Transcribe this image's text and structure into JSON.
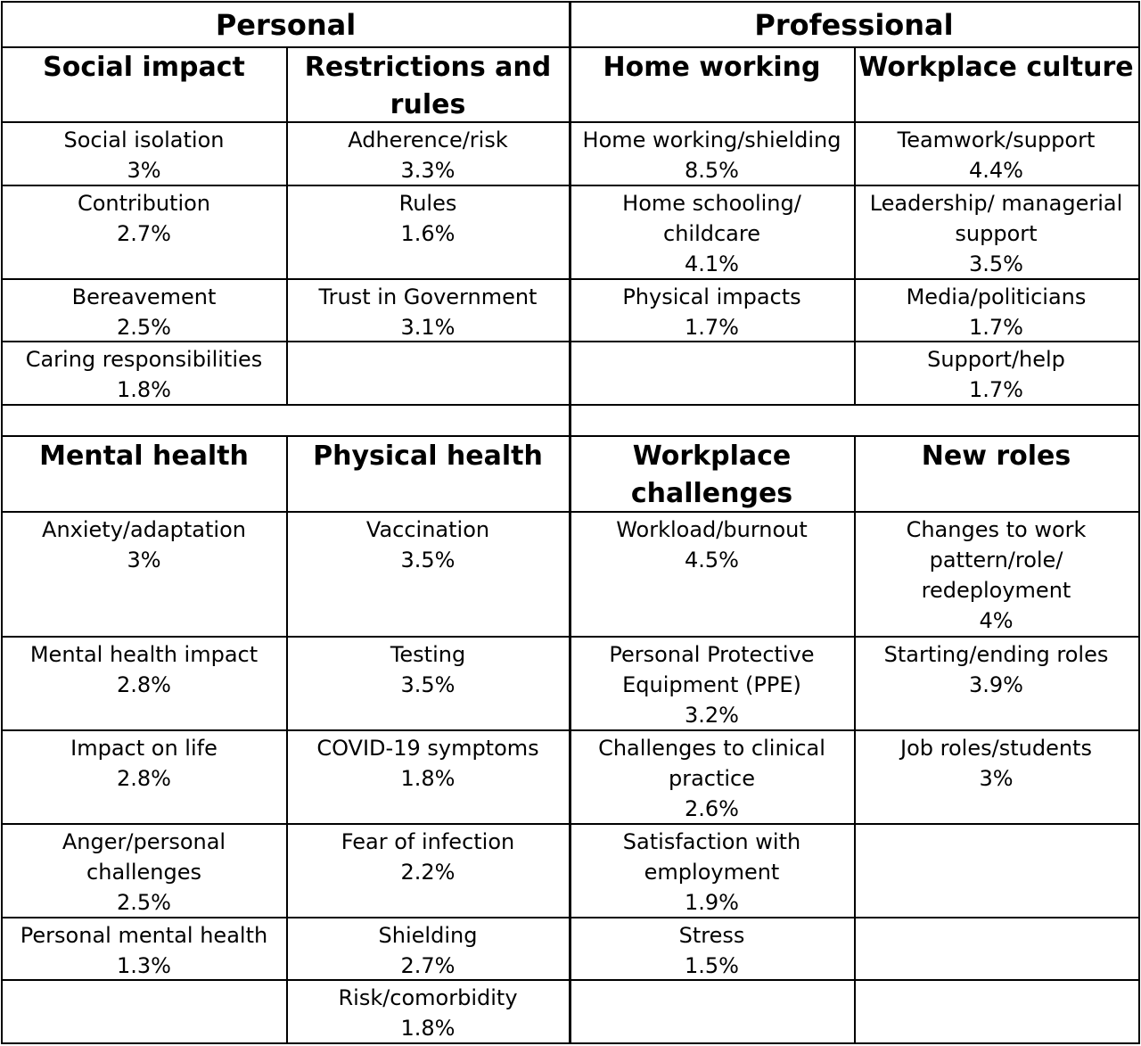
{
  "table": {
    "sections": [
      "Personal",
      "Professional"
    ],
    "upper": {
      "headers": [
        [
          "Social impact"
        ],
        [
          "Restrictions and",
          "rules"
        ],
        [
          "Home working"
        ],
        [
          "Workplace culture"
        ]
      ],
      "rows": [
        [
          [
            "Social isolation",
            "3%"
          ],
          [
            "Adherence/risk",
            "3.3%"
          ],
          [
            "Home working/shielding",
            "8.5%"
          ],
          [
            "Teamwork/support",
            "4.4%"
          ]
        ],
        [
          [
            "Contribution",
            "2.7%"
          ],
          [
            "Rules",
            "1.6%"
          ],
          [
            "Home schooling/",
            "childcare",
            "4.1%"
          ],
          [
            "Leadership/ managerial",
            "support",
            "3.5%"
          ]
        ],
        [
          [
            "Bereavement",
            "2.5%"
          ],
          [
            "Trust in Government",
            "3.1%"
          ],
          [
            "Physical impacts",
            "1.7%"
          ],
          [
            "Media/politicians",
            "1.7%"
          ]
        ],
        [
          [
            "Caring responsibilities",
            "1.8%"
          ],
          [],
          [],
          [
            "Support/help",
            "1.7%"
          ]
        ]
      ]
    },
    "lower": {
      "headers": [
        [
          "Mental health"
        ],
        [
          "Physical health"
        ],
        [
          "Workplace",
          "challenges"
        ],
        [
          "New roles"
        ]
      ],
      "rows": [
        [
          [
            "Anxiety/adaptation",
            "3%"
          ],
          [
            "Vaccination",
            "3.5%"
          ],
          [
            "Workload/burnout",
            "4.5%"
          ],
          [
            "Changes to work",
            "pattern/role/",
            "redeployment",
            "4%"
          ]
        ],
        [
          [
            "Mental health impact",
            "2.8%"
          ],
          [
            "Testing",
            "3.5%"
          ],
          [
            "Personal Protective",
            "Equipment (PPE)",
            "3.2%"
          ],
          [
            "Starting/ending roles",
            "3.9%"
          ]
        ],
        [
          [
            "Impact on life",
            "2.8%"
          ],
          [
            "COVID-19 symptoms",
            "1.8%"
          ],
          [
            "Challenges to clinical",
            "practice",
            "2.6%"
          ],
          [
            "Job roles/students",
            "3%"
          ]
        ],
        [
          [
            "Anger/personal",
            "challenges",
            "2.5%"
          ],
          [
            "Fear of infection",
            "2.2%"
          ],
          [
            "Satisfaction with",
            "employment",
            "1.9%"
          ],
          []
        ],
        [
          [
            "Personal mental health",
            "1.3%"
          ],
          [
            "Shielding",
            "2.7%"
          ],
          [
            "Stress",
            "1.5%"
          ],
          []
        ],
        [
          [],
          [
            "Risk/comorbidity",
            "1.8%"
          ],
          [],
          []
        ]
      ]
    }
  }
}
